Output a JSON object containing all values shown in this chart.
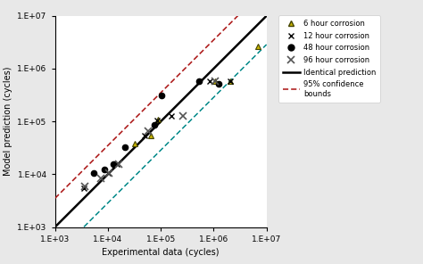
{
  "xlabel": "Experimental data (cycles)",
  "ylabel": "Model prediction (cycles)",
  "xlim_log": [
    3,
    7
  ],
  "ylim_log": [
    3,
    7
  ],
  "identity_line": {
    "color": "#000000",
    "lw": 1.8
  },
  "upper_bound": {
    "factor": 3.5,
    "color": "#aa1111",
    "lw": 1.1
  },
  "lower_bound": {
    "factor": 0.286,
    "color": "#008888",
    "lw": 1.1
  },
  "data_6h": {
    "x": [
      32000.0,
      65000.0,
      90000.0,
      1050000.0,
      2100000.0,
      6800000.0
    ],
    "y": [
      38000.0,
      55000.0,
      110000.0,
      580000.0,
      580000.0,
      2600000.0
    ],
    "marker": "^",
    "mfc": "#c8b400",
    "mec": "#444400",
    "ms": 4.5,
    "label": "6 hour corrosion"
  },
  "data_12h": {
    "x": [
      3500.0,
      10000.0,
      15000.0,
      50000.0,
      85000.0,
      160000.0,
      850000.0,
      2100000.0
    ],
    "y": [
      5500.0,
      10500.0,
      15500.0,
      55000.0,
      105000.0,
      125000.0,
      580000.0,
      580000.0
    ],
    "marker": "x",
    "mfc": "#000000",
    "mec": "#000000",
    "ms": 4.5,
    "label": "12 hour corrosion"
  },
  "data_48h": {
    "x": [
      5500.0,
      8500.0,
      12500.0,
      21000.0,
      75000.0,
      105000.0,
      520000.0,
      1250000.0
    ],
    "y": [
      10500.0,
      12500.0,
      15500.0,
      32000.0,
      85000.0,
      310000.0,
      580000.0,
      520000.0
    ],
    "marker": "o",
    "mfc": "#000000",
    "mec": "#000000",
    "ms": 4.5,
    "label": "48 hour corrosion"
  },
  "data_96h": {
    "x": [
      3600.0,
      7500.0,
      10500.0,
      16000.0,
      58000.0,
      260000.0,
      1050000.0
    ],
    "y": [
      5800.0,
      8500.0,
      10500.0,
      15500.0,
      65000.0,
      125000.0,
      580000.0
    ],
    "marker": "x",
    "mfc": "#555555",
    "mec": "#555555",
    "ms": 5.5,
    "label": "96 hour corrosion"
  },
  "legend_identical": "Identical prediction",
  "legend_confidence": "95% confidence\nbounds",
  "bg_color": "#e8e8e8",
  "plot_bg": "#ffffff"
}
